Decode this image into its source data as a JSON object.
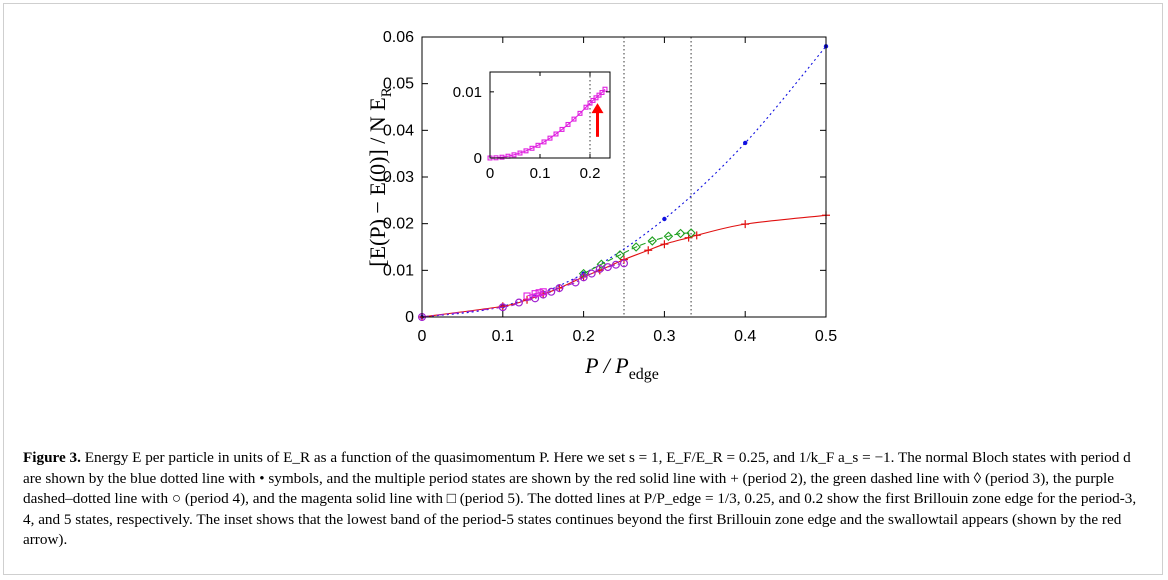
{
  "figure": {
    "caption_label": "Figure 3.",
    "caption_text": "Energy E per particle in units of E_R as a function of the quasimomentum P. Here we set s = 1, E_F/E_R = 0.25, and 1/k_F a_s = −1. The normal Bloch states with period d are shown by the blue dotted line with • symbols, and the multiple period states are shown by the red solid line with + (period 2), the green dashed line with ◊ (period 3), the purple dashed–dotted line with ○ (period 4), and the magenta solid line with □ (period 5). The dotted lines at P/P_edge = 1/3, 0.25, and 0.2 show the first Brillouin zone edge for the period-3, 4, and 5 states, respectively. The inset shows that the lowest band of the period-5 states continues beyond the first Brillouin zone edge and the swallowtail appears (shown by the red arrow)."
  },
  "chart_data": [
    {
      "type": "line",
      "xlabel": "P / P_edge",
      "ylabel": "[E(P) − E(0)] / N E_R",
      "xlim": [
        0,
        0.5
      ],
      "ylim": [
        0,
        0.06
      ],
      "xticks": [
        "0",
        "0.1",
        "0.2",
        "0.3",
        "0.4",
        "0.5"
      ],
      "yticks": [
        "0",
        "0.01",
        "0.02",
        "0.03",
        "0.04",
        "0.05",
        "0.06"
      ],
      "grid": false,
      "legend": "none",
      "vlines": [
        0.25,
        0.333
      ],
      "series": [
        {
          "style": "blue-dotted-dots",
          "color": "#1010e0",
          "x": [
            0,
            0.1,
            0.2,
            0.3,
            0.4,
            0.5
          ],
          "y": [
            0,
            0.0023,
            0.0093,
            0.021,
            0.0373,
            0.058
          ]
        },
        {
          "style": "red-solid-plus",
          "color": "#e01010",
          "x": [
            0,
            0.1,
            0.13,
            0.15,
            0.17,
            0.2,
            0.22,
            0.25,
            0.28,
            0.3,
            0.33,
            0.34,
            0.4,
            0.5
          ],
          "y": [
            0,
            0.0023,
            0.0037,
            0.0049,
            0.0062,
            0.0086,
            0.01,
            0.0123,
            0.0143,
            0.0156,
            0.017,
            0.0175,
            0.0199,
            0.0218
          ]
        },
        {
          "style": "green-dashed-diamond",
          "color": "#20a020",
          "x": [
            0.2,
            0.222,
            0.245,
            0.265,
            0.285,
            0.305,
            0.32,
            0.333
          ],
          "y": [
            0.0093,
            0.0113,
            0.0133,
            0.015,
            0.0163,
            0.0173,
            0.0179,
            0.018
          ]
        },
        {
          "style": "purple-dashdot-circle",
          "color": "#a020d0",
          "x": [
            0,
            0.1,
            0.12,
            0.14,
            0.15,
            0.16,
            0.17,
            0.19,
            0.2,
            0.21,
            0.22,
            0.23,
            0.24,
            0.25
          ],
          "y": [
            0,
            0.0021,
            0.0031,
            0.004,
            0.0048,
            0.0054,
            0.0062,
            0.0074,
            0.0085,
            0.0093,
            0.0103,
            0.0107,
            0.0112,
            0.0115
          ]
        },
        {
          "style": "magenta-solid-square",
          "color": "#e020e0",
          "x": [
            0.13,
            0.14,
            0.145,
            0.15
          ],
          "y": [
            0.0045,
            0.005,
            0.0052,
            0.0054
          ]
        }
      ]
    },
    {
      "type": "line",
      "inset": true,
      "xlim": [
        0,
        0.24
      ],
      "ylim": [
        0,
        0.013
      ],
      "xticks": [
        "0",
        "0.1",
        "0.2"
      ],
      "yticks": [
        "0",
        "0.01"
      ],
      "vlines": [
        0.2
      ],
      "arrow": {
        "x": 0.215,
        "y_from": 0.0032,
        "y_to": 0.0083,
        "color": "#ff0000"
      },
      "series": [
        {
          "style": "magenta-solid-square",
          "color": "#e020e0",
          "x": [
            0,
            0.012,
            0.024,
            0.036,
            0.048,
            0.06,
            0.072,
            0.084,
            0.096,
            0.108,
            0.12,
            0.132,
            0.144,
            0.156,
            0.168,
            0.18,
            0.192,
            0.2,
            0.206,
            0.212,
            0.218,
            0.224,
            0.23
          ],
          "y": [
            0,
            3e-05,
            0.00012,
            0.00027,
            0.00048,
            0.00075,
            0.00108,
            0.00147,
            0.00192,
            0.00243,
            0.003,
            0.00363,
            0.00432,
            0.00507,
            0.00588,
            0.00675,
            0.00768,
            0.0083,
            0.0087,
            0.0091,
            0.0095,
            0.0099,
            0.0104
          ]
        }
      ]
    }
  ]
}
